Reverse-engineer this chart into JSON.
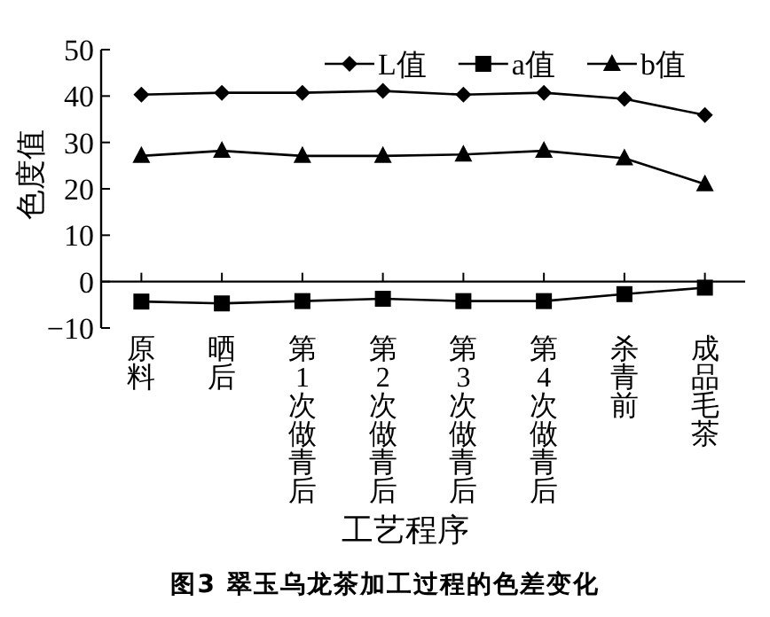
{
  "chart_data": {
    "type": "line",
    "title": "图3 翠玉乌龙茶加工过程的色差变化",
    "xlabel": "工艺程序",
    "ylabel": "色度值",
    "categories": [
      "原料",
      "晒后",
      "第1次做青后",
      "第2次做青后",
      "第3次做青后",
      "第4次做青后",
      "杀青前",
      "成品毛茶"
    ],
    "series": [
      {
        "name": "L值",
        "color": "#000000",
        "marker": "diamond",
        "values": [
          40.3,
          40.7,
          40.7,
          41.1,
          40.3,
          40.7,
          39.4,
          35.9
        ]
      },
      {
        "name": "a值",
        "color": "#000000",
        "marker": "square",
        "values": [
          -4.3,
          -4.7,
          -4.2,
          -3.7,
          -4.2,
          -4.2,
          -2.7,
          -1.3
        ]
      },
      {
        "name": "b值",
        "color": "#000000",
        "marker": "triangle",
        "values": [
          27.1,
          28.2,
          27.1,
          27.1,
          27.4,
          28.2,
          26.6,
          21.0
        ]
      }
    ],
    "ylim": [
      -10,
      50
    ],
    "yticks": [
      -10,
      0,
      10,
      20,
      30,
      40,
      50
    ],
    "legend": "top right",
    "grid": false
  }
}
